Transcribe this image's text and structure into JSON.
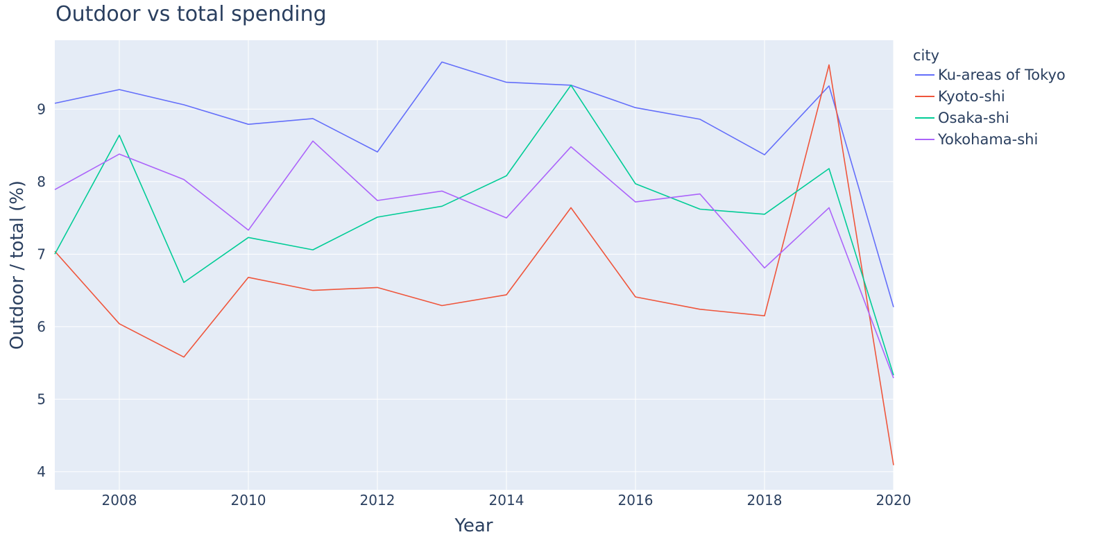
{
  "chart_data": {
    "type": "line",
    "title": "Outdoor vs total spending",
    "xlabel": "Year",
    "ylabel": "Outdoor / total (%)",
    "legend_title": "city",
    "legend_position": "top-right",
    "grid": true,
    "xlim": [
      2007,
      2020
    ],
    "ylim": [
      3.75,
      9.95
    ],
    "xticks": [
      2008,
      2010,
      2012,
      2014,
      2016,
      2018,
      2020
    ],
    "yticks": [
      4,
      5,
      6,
      7,
      8,
      9
    ],
    "x": [
      2007,
      2008,
      2009,
      2010,
      2011,
      2012,
      2013,
      2014,
      2015,
      2016,
      2017,
      2018,
      2019,
      2020
    ],
    "series": [
      {
        "name": "Ku-areas of Tokyo",
        "color": "#636efa",
        "values": [
          9.08,
          9.27,
          9.06,
          8.79,
          8.87,
          8.41,
          9.65,
          9.37,
          9.33,
          9.02,
          8.86,
          8.37,
          9.32,
          6.27
        ]
      },
      {
        "name": "Kyoto-shi",
        "color": "#ef553b",
        "values": [
          7.04,
          6.04,
          5.58,
          6.68,
          6.5,
          6.54,
          6.29,
          6.44,
          7.64,
          6.41,
          6.24,
          6.15,
          9.61,
          4.09
        ]
      },
      {
        "name": "Osaka-shi",
        "color": "#00cc96",
        "values": [
          7.0,
          8.64,
          6.61,
          7.23,
          7.06,
          7.51,
          7.66,
          8.08,
          9.33,
          7.97,
          7.62,
          7.55,
          8.18,
          5.33
        ]
      },
      {
        "name": "Yokohama-shi",
        "color": "#ab63fa",
        "values": [
          7.89,
          8.38,
          8.03,
          7.33,
          8.56,
          7.74,
          7.87,
          7.5,
          8.48,
          7.72,
          7.83,
          6.81,
          7.64,
          5.29
        ]
      }
    ]
  },
  "style": {
    "plot_bg": "#e5ecf6",
    "grid_color": "#ffffff",
    "text_color": "#2a3f5f"
  }
}
